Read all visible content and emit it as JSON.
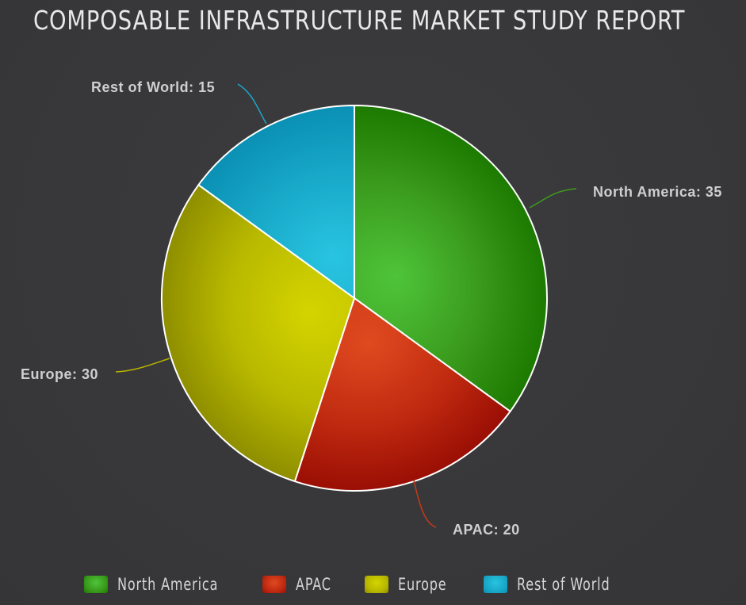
{
  "chart_data": {
    "type": "pie",
    "title": "COMPOSABLE INFRASTRUCTURE MARKET STUDY REPORT",
    "slices": [
      {
        "label": "North America",
        "value": 35,
        "data_label": "North America: 35",
        "legend_label": "North America",
        "color": "#3a9a1c",
        "color_light": "#4ec43a",
        "color_dark": "#1c7a00",
        "leader_color": "#3f9a1f"
      },
      {
        "label": "APAC",
        "value": 20,
        "data_label": "APAC: 20",
        "legend_label": "APAC",
        "color": "#c02a10",
        "color_light": "#e04a20",
        "color_dark": "#9a0e04",
        "leader_color": "#c83a18"
      },
      {
        "label": "Europe",
        "value": 30,
        "data_label": "Europe: 30",
        "legend_label": "Europe",
        "color": "#b8b800",
        "color_light": "#d4d400",
        "color_dark": "#8e8e00",
        "leader_color": "#b8b400"
      },
      {
        "label": "Rest of World",
        "value": 15,
        "data_label": "Rest of World: 15",
        "legend_label": "Rest of World",
        "color": "#18a8c8",
        "color_light": "#28c4e0",
        "color_dark": "#0a90b4",
        "leader_color": "#1aa8cc"
      }
    ],
    "start_angle": "top (12 o'clock)",
    "direction": "clockwise",
    "slice_border_color": "#ffffff",
    "legend_position": "bottom"
  }
}
